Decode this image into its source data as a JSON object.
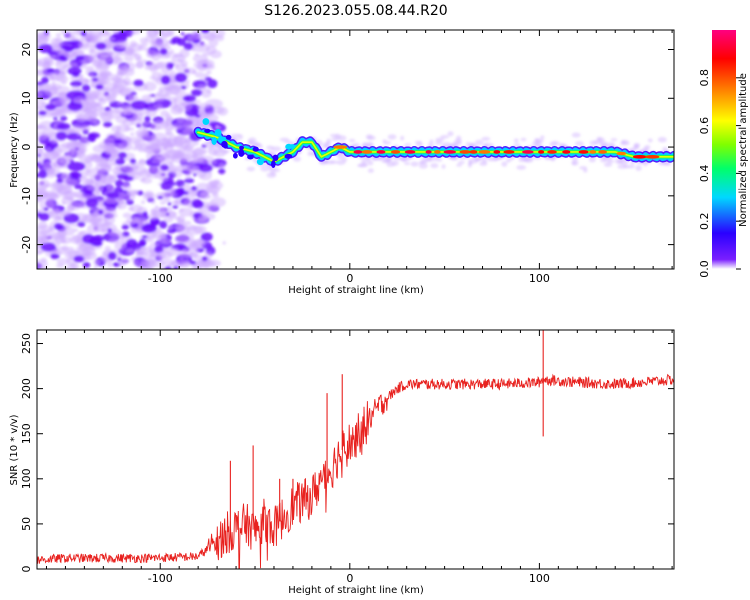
{
  "title": "S126.2023.055.08.44.R20",
  "colorbar": {
    "label": "Normalized spectral amplitude",
    "ticks": [
      "0.0",
      "0.2",
      "0.4",
      "0.6",
      "0.8"
    ],
    "tick_values": [
      0.0,
      0.2,
      0.4,
      0.6,
      0.8
    ]
  },
  "chart_data": [
    {
      "type": "heatmap",
      "title": "",
      "xlabel": "Height of straight line (km)",
      "ylabel": "Frequency (Hz)",
      "xlim": [
        -165,
        171
      ],
      "ylim": [
        -25,
        24
      ],
      "xticks": [
        -100,
        0,
        100
      ],
      "xtick_labels": [
        "-100",
        "0",
        "100"
      ],
      "yticks": [
        -20,
        -10,
        0,
        10,
        20
      ],
      "ytick_labels": [
        "-20",
        "-10",
        "0",
        "10",
        "20"
      ],
      "value_range": [
        0.0,
        1.0
      ],
      "noise_region_x": [
        -165,
        -77
      ],
      "ridge": {
        "x": [
          -80,
          -70,
          -60,
          -50,
          -40,
          -30,
          -25,
          -20,
          -15,
          -10,
          -5,
          0,
          10,
          20,
          40,
          60,
          80,
          100,
          120,
          140,
          150,
          160,
          170
        ],
        "y": [
          3,
          2,
          0,
          -1,
          -3,
          -1,
          1,
          1,
          -2,
          -1,
          0,
          -1,
          -1,
          -1,
          -1,
          -1,
          -1,
          -1,
          -1,
          -1,
          -2,
          -2,
          -2
        ]
      }
    },
    {
      "type": "line",
      "title": "",
      "xlabel": "Height of straight line (km)",
      "ylabel": "SNR (10 * v/v)",
      "xlim": [
        -165,
        171
      ],
      "ylim": [
        0,
        265
      ],
      "xticks": [
        -100,
        0,
        100
      ],
      "xtick_labels": [
        "-100",
        "0",
        "100"
      ],
      "yticks": [
        0,
        50,
        100,
        150,
        200,
        250
      ],
      "ytick_labels": [
        "0",
        "50",
        "100",
        "150",
        "200",
        "250"
      ],
      "series": [
        {
          "color": "#e8221f",
          "x": [
            -165,
            -150,
            -130,
            -110,
            -90,
            -80,
            -75,
            -70,
            -65,
            -60,
            -55,
            -50,
            -45,
            -40,
            -35,
            -30,
            -25,
            -20,
            -15,
            -10,
            -5,
            0,
            5,
            10,
            15,
            20,
            25,
            30,
            40,
            60,
            80,
            100,
            102,
            120,
            140,
            160,
            171
          ],
          "y": [
            10,
            12,
            12,
            12,
            13,
            14,
            22,
            30,
            40,
            45,
            50,
            42,
            55,
            45,
            58,
            70,
            75,
            80,
            100,
            110,
            130,
            140,
            150,
            165,
            180,
            190,
            200,
            205,
            205,
            205,
            205,
            207,
            210,
            207,
            205,
            208,
            210
          ]
        }
      ],
      "spikes": [
        {
          "x": -63,
          "y": 120
        },
        {
          "x": -51,
          "y": 137
        },
        {
          "x": -37,
          "y": 100
        },
        {
          "x": -30,
          "y": 100
        },
        {
          "x": -12,
          "y": 195
        },
        {
          "x": -4,
          "y": 216
        },
        {
          "x": 102,
          "y": 265
        },
        {
          "x": 102,
          "y": 147
        }
      ]
    }
  ]
}
